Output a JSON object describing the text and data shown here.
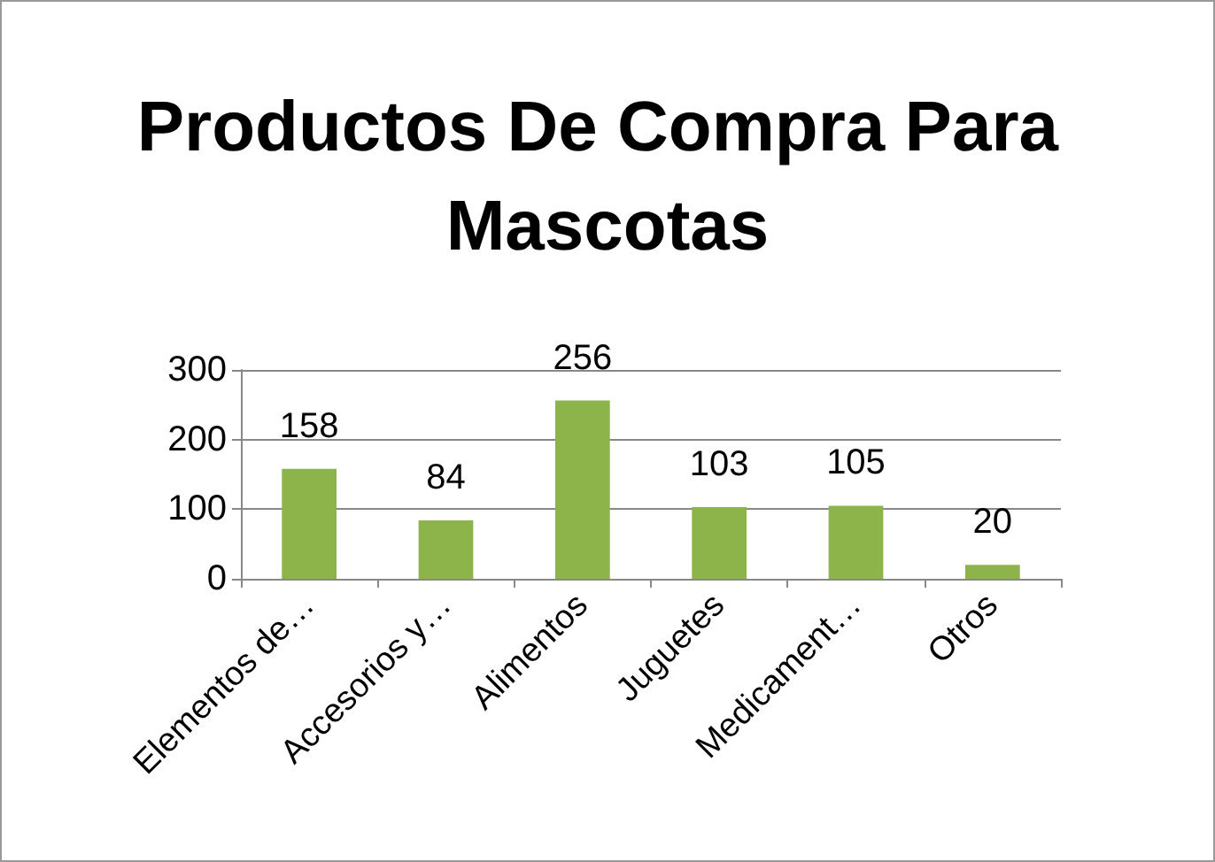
{
  "chart_data": {
    "type": "bar",
    "title": "Productos De Compra Para Mascotas",
    "categories": [
      "Elementos de…",
      "Accesorios y…",
      "Alimentos",
      "Juguetes",
      "Medicament…",
      "Otros"
    ],
    "values": [
      158,
      84,
      256,
      103,
      105,
      20
    ],
    "color": "#8db44a",
    "ylim": [
      0,
      300
    ],
    "yticks": [
      0,
      100,
      200,
      300
    ],
    "grid": true,
    "data_labels": true
  }
}
